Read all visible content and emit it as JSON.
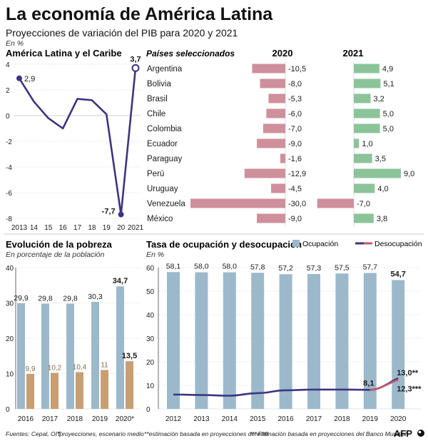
{
  "header": {
    "title": "La economía de América Latina",
    "subtitle": "Proyecciones de variación del PIB para 2020 y 2021",
    "unit": "En %"
  },
  "footer": {
    "sources": "Fuentes: Cepal, OIT",
    "note1": "*proyecciones, escenario medio",
    "note2": "**estimación basada en proyecciones del FMI",
    "note3": "***estimación basada en proyecciones del Banco Mundial",
    "logo": "AFP"
  },
  "colors": {
    "line": "#3d3580",
    "neg_bar": "#cf8f9b",
    "pos_bar": "#8cc49a",
    "blue_bar": "#9cb9cb",
    "tan_bar": "#c99e72",
    "unemp_line": "#3d3580",
    "unemp_line_end": "#c8566b",
    "grid": "#d0d0d0"
  },
  "chart_data": [
    {
      "id": "pib_region",
      "type": "line",
      "title": "América Latina y el Caribe",
      "x": [
        2013,
        2014,
        2015,
        2016,
        2017,
        2018,
        2019,
        2020,
        2021
      ],
      "xticklabels": [
        "2013",
        "14",
        "15",
        "16",
        "17",
        "18",
        "19",
        "20",
        "2021"
      ],
      "values": [
        2.9,
        1.1,
        -0.2,
        -1.0,
        1.3,
        1.2,
        0.1,
        -7.7,
        3.7
      ],
      "labels": {
        "2013": "2,9",
        "2020": "-7,7",
        "2021": "3,7"
      },
      "ylim": [
        -8,
        4
      ],
      "yticks": [
        4,
        2,
        0,
        -2,
        -4,
        -6,
        -8
      ],
      "yticklabels": [
        "4",
        "2",
        "0",
        "-2",
        "-4",
        "-6",
        "-8"
      ]
    },
    {
      "id": "pib_countries",
      "type": "bar",
      "title": "Países seleccionados",
      "series": [
        {
          "name": "2020",
          "values": [
            -10.5,
            -8.0,
            -5.3,
            -6.0,
            -7.0,
            -9.0,
            -1.6,
            -12.9,
            -4.5,
            -30.0,
            -9.0
          ],
          "labels": [
            "-10,5",
            "-8,0",
            "-5,3",
            "-6,0",
            "-7,0",
            "-9,0",
            "-1,6",
            "-12,9",
            "-4,5",
            "-30,0",
            "-9,0"
          ]
        },
        {
          "name": "2021",
          "values": [
            4.9,
            5.1,
            3.2,
            5.0,
            5.0,
            1.0,
            3.5,
            9.0,
            4.0,
            -7.0,
            3.8
          ],
          "labels": [
            "4,9",
            "5,1",
            "3,2",
            "5,0",
            "5,0",
            "1,0",
            "3,5",
            "9,0",
            "4,0",
            "-7,0",
            "3,8"
          ]
        }
      ],
      "categories": [
        "Argentina",
        "Bolivia",
        "Brasil",
        "Chile",
        "Colombia",
        "Ecuador",
        "Paraguay",
        "Perú",
        "Uruguay",
        "Venezuela",
        "México"
      ]
    },
    {
      "id": "pobreza",
      "type": "bar",
      "title": "Evolución de la pobreza",
      "subtitle": "En porcentaje de la población",
      "categories": [
        "2016",
        "2017",
        "2018",
        "2019",
        "2020*"
      ],
      "series": [
        {
          "name": "pobreza",
          "values": [
            29.9,
            29.8,
            29.8,
            30.3,
            34.7
          ],
          "labels": [
            "29,9",
            "29,8",
            "29,8",
            "30,3",
            "34,7"
          ]
        },
        {
          "name": "pobreza extrema",
          "values": [
            9.9,
            10.2,
            10.4,
            11,
            13.5
          ],
          "labels": [
            "9,9",
            "10,2",
            "10,4",
            "11",
            "13,5"
          ]
        }
      ],
      "ylim": [
        0,
        40
      ],
      "yticks": [
        0,
        10,
        20,
        30,
        40
      ],
      "yticklabels": [
        "0",
        "10",
        "20",
        "30",
        "40"
      ]
    },
    {
      "id": "empleo",
      "type": "bar",
      "title": "Tasa de ocupación y desocupación",
      "subtitle": "En %",
      "legend": [
        "Ocupación",
        "Desocupación"
      ],
      "categories": [
        "2012",
        "2013",
        "2014",
        "2015",
        "2016",
        "2017",
        "2018",
        "2019",
        "2020"
      ],
      "series": [
        {
          "name": "Ocupación",
          "type": "bar",
          "values": [
            58.1,
            58.0,
            58.0,
            57.8,
            57.2,
            57.3,
            57.5,
            57.7,
            54.7
          ],
          "labels": [
            "58,1",
            "58,0",
            "58,0",
            "57,8",
            "57,2",
            "57,3",
            "57,5",
            "57,7",
            "54,7"
          ]
        },
        {
          "name": "Desocupación",
          "type": "line",
          "values": [
            6.1,
            5.9,
            5.6,
            6.7,
            7.9,
            8.2,
            8.2,
            8.1,
            13.0
          ],
          "labels": {
            "2019": "8,1",
            "2020": "13,0**"
          },
          "alt_end": 12.3,
          "alt_end_label": "12,3***"
        }
      ],
      "ylim": [
        0,
        60
      ],
      "yticks": [
        0,
        10,
        20,
        30,
        40,
        50,
        60
      ],
      "yticklabels": [
        "0",
        "10",
        "20",
        "30",
        "40",
        "50",
        "60"
      ]
    }
  ]
}
